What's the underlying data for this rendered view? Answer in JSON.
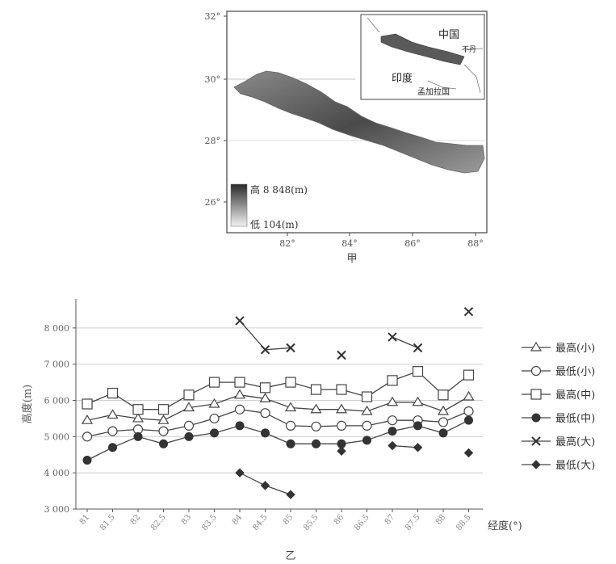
{
  "map": {
    "lat_ticks": [
      "32°",
      "30°",
      "28°",
      "26°"
    ],
    "lon_ticks": [
      "82°",
      "84°",
      "86°",
      "88°"
    ],
    "legend_high": "高 8 848(m)",
    "legend_low": "低 104(m)",
    "caption": "甲",
    "inset": {
      "china": "中国",
      "bhutan": "不丹",
      "india": "印度",
      "bangladesh": "孟加拉国"
    }
  },
  "chart_data": {
    "type": "line",
    "caption": "乙",
    "xlabel": "经度(°)",
    "ylabel": "高度(m)",
    "categories": [
      "81",
      "81.5",
      "82",
      "82.5",
      "83",
      "83.5",
      "84",
      "84.5",
      "85",
      "85.5",
      "86",
      "86.5",
      "87",
      "87.5",
      "88",
      "88.5"
    ],
    "ylim": [
      3000,
      8800
    ],
    "yticks": [
      3000,
      4000,
      5000,
      6000,
      7000,
      8000
    ],
    "ytick_labels": [
      "3 000",
      "4 000",
      "5 000",
      "6 000",
      "7 000",
      "8 000"
    ],
    "grid": true,
    "legend_position": "right",
    "series": [
      {
        "name": "最高(小)",
        "marker": "triangle",
        "values": [
          5450,
          5600,
          5500,
          5450,
          5800,
          5900,
          6150,
          6050,
          5800,
          5750,
          5750,
          5700,
          5950,
          5950,
          5700,
          6100
        ]
      },
      {
        "name": "最低(小)",
        "marker": "circle",
        "values": [
          5000,
          5150,
          5200,
          5150,
          5300,
          5500,
          5750,
          5650,
          5300,
          5280,
          5300,
          5300,
          5450,
          5450,
          5400,
          5700
        ]
      },
      {
        "name": "最高(中)",
        "marker": "square",
        "values": [
          5900,
          6200,
          5750,
          5750,
          6150,
          6500,
          6500,
          6350,
          6500,
          6300,
          6300,
          6100,
          6550,
          6800,
          6150,
          6700
        ]
      },
      {
        "name": "最低(中)",
        "marker": "filled-circle",
        "values": [
          4350,
          4700,
          5000,
          4800,
          5000,
          5100,
          5300,
          5100,
          4800,
          4800,
          4800,
          4900,
          5150,
          5300,
          5100,
          5450
        ]
      },
      {
        "name": "最高(大)",
        "marker": "x",
        "values": [
          null,
          null,
          null,
          null,
          null,
          null,
          8200,
          7400,
          7450,
          null,
          7250,
          null,
          7750,
          7450,
          null,
          8450
        ]
      },
      {
        "name": "最低(大)",
        "marker": "filled-diamond",
        "values": [
          null,
          null,
          null,
          null,
          null,
          null,
          4000,
          3650,
          3400,
          null,
          4600,
          null,
          4750,
          4700,
          null,
          4550
        ]
      }
    ]
  }
}
